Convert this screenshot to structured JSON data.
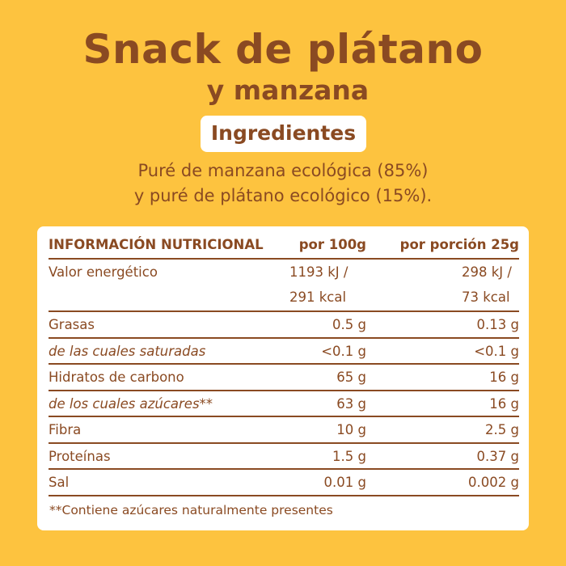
{
  "title": {
    "line1": "Snack de plátano",
    "line2": "y manzana"
  },
  "ingredients": {
    "heading": "Ingredientes",
    "line1": "Puré de manzana ecológica (85%)",
    "line2": "y puré de plátano ecológico (15%)."
  },
  "nutrition": {
    "header": {
      "label": "INFORMACIÓN NUTRICIONAL",
      "per100": "por 100g",
      "perPortion": "por porción 25g"
    },
    "energy": {
      "label": "Valor energético",
      "per100_kj": "1193 kJ /",
      "per100_kcal": "291 kcal",
      "portion_kj": "298 kJ /",
      "portion_kcal": "73 kcal"
    },
    "rows": [
      {
        "label": "Grasas",
        "per100": "0.5 g",
        "portion": "0.13 g",
        "italic": false
      },
      {
        "label": "de las cuales saturadas",
        "per100": "<0.1 g",
        "portion": "<0.1 g",
        "italic": true
      },
      {
        "label": "Hidratos de carbono",
        "per100": "65 g",
        "portion": "16 g",
        "italic": false
      },
      {
        "label": "de los cuales azúcares**",
        "per100": "63 g",
        "portion": "16 g",
        "italic": true
      },
      {
        "label": "Fibra",
        "per100": "10 g",
        "portion": "2.5 g",
        "italic": false
      },
      {
        "label": "Proteínas",
        "per100": "1.5 g",
        "portion": "0.37 g",
        "italic": false
      },
      {
        "label": "Sal",
        "per100": "0.01 g",
        "portion": "0.002 g",
        "italic": false
      }
    ],
    "footnote": "**Contiene azúcares naturalmente presentes"
  },
  "colors": {
    "background": "#FDC33F",
    "brown": "#8A4A22",
    "card": "#FFFFFF"
  }
}
